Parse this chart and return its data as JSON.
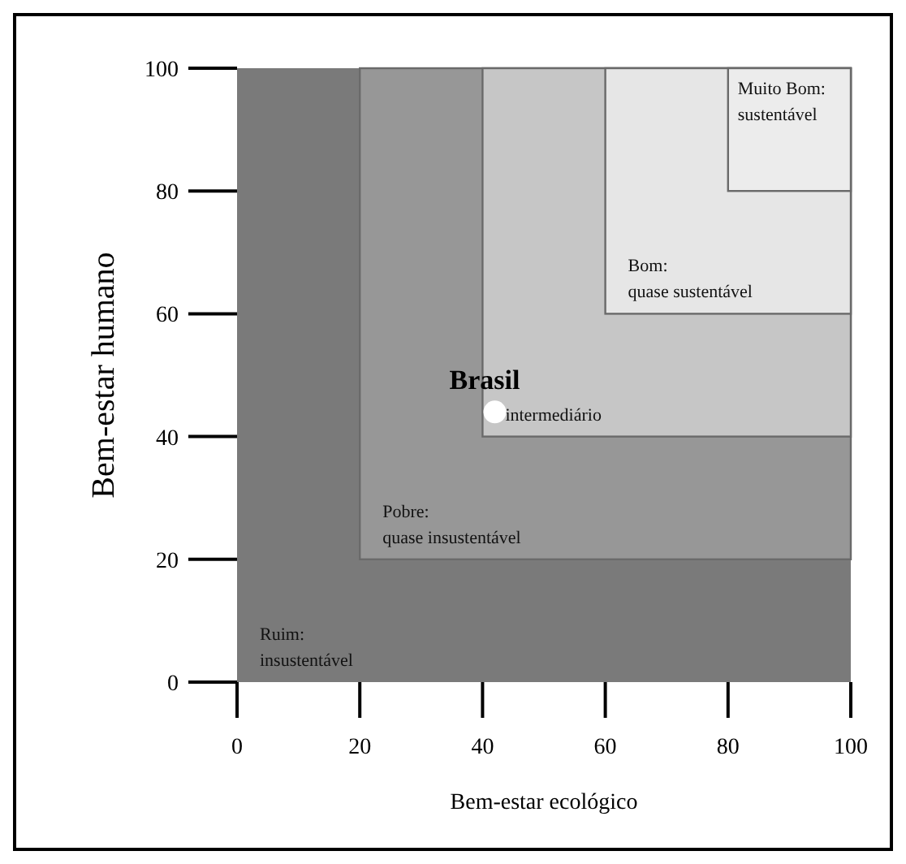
{
  "chart_data": {
    "type": "scatter",
    "xlabel": "Bem-estar ecológico",
    "ylabel": "Bem-estar humano",
    "xlim": [
      0,
      100
    ],
    "ylim": [
      0,
      100
    ],
    "xticks": [
      0,
      20,
      40,
      60,
      80,
      100
    ],
    "yticks": [
      0,
      20,
      40,
      60,
      80,
      100
    ],
    "series": [
      {
        "name": "Brasil",
        "color": "#ffffff",
        "x": [
          42
        ],
        "values": [
          44
        ]
      }
    ],
    "marker": "circle",
    "grid": false,
    "bands": [
      {
        "axis": "x",
        "from": 0,
        "to": 100,
        "color": "#7a7a7a",
        "label": "Ruim:\ninsustentável"
      },
      {
        "axis": "x",
        "from": 20,
        "to": 100,
        "color": "#979797",
        "label": "Pobre:\nquase insustentável"
      },
      {
        "axis": "x",
        "from": 40,
        "to": 100,
        "color": "#c6c6c6",
        "label": "intermediário"
      },
      {
        "axis": "x",
        "from": 60,
        "to": 100,
        "color": "#e6e6e6",
        "label": "Bom:\nquase sustentável"
      },
      {
        "axis": "x",
        "from": 80,
        "to": 100,
        "color": "#ececec",
        "label": "Muito Bom:\nsustentável"
      }
    ]
  }
}
